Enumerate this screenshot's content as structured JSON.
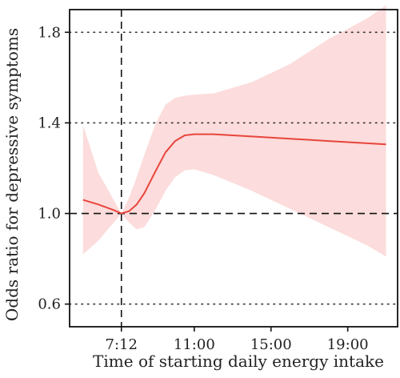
{
  "chart_data": {
    "type": "line",
    "xlabel": "Time of starting daily energy intake",
    "ylabel": "Odds ratio for depressive symptoms",
    "xlim": [
      4.5,
      21.6
    ],
    "ylim": [
      0.5,
      1.9
    ],
    "x_ticks": [
      {
        "value": 7.2,
        "label": "7:12"
      },
      {
        "value": 11.0,
        "label": "11:00"
      },
      {
        "value": 15.0,
        "label": "15:00"
      },
      {
        "value": 19.0,
        "label": "19:00"
      }
    ],
    "y_ticks": [
      {
        "value": 0.6,
        "label": "0.6"
      },
      {
        "value": 1.0,
        "label": "1.0"
      },
      {
        "value": 1.4,
        "label": "1.4"
      },
      {
        "value": 1.8,
        "label": "1.8"
      }
    ],
    "grid": "horizontal dotted at y ticks",
    "reference_lines": [
      {
        "axis": "y",
        "value": 1.0,
        "style": "dashed"
      },
      {
        "axis": "x",
        "value": 7.2,
        "style": "dashed"
      }
    ],
    "series": [
      {
        "color": "#e8453c",
        "band_color": "#fcdcdc",
        "x": [
          5.2,
          6.0,
          6.8,
          7.2,
          7.6,
          8.0,
          8.4,
          9.0,
          9.5,
          10.0,
          10.5,
          11.0,
          12.0,
          14.0,
          16.0,
          18.0,
          20.0,
          21.0
        ],
        "y": [
          1.06,
          1.04,
          1.015,
          1.0,
          1.01,
          1.04,
          1.09,
          1.19,
          1.27,
          1.32,
          1.345,
          1.35,
          1.35,
          1.34,
          1.33,
          1.32,
          1.31,
          1.305
        ],
        "lower": [
          0.82,
          0.88,
          0.96,
          1.0,
          0.96,
          0.93,
          0.94,
          1.02,
          1.1,
          1.16,
          1.19,
          1.195,
          1.17,
          1.1,
          1.02,
          0.94,
          0.86,
          0.81
        ],
        "upper": [
          1.39,
          1.18,
          1.06,
          1.0,
          1.07,
          1.16,
          1.26,
          1.4,
          1.48,
          1.51,
          1.52,
          1.525,
          1.53,
          1.58,
          1.66,
          1.77,
          1.86,
          1.92
        ]
      }
    ]
  }
}
